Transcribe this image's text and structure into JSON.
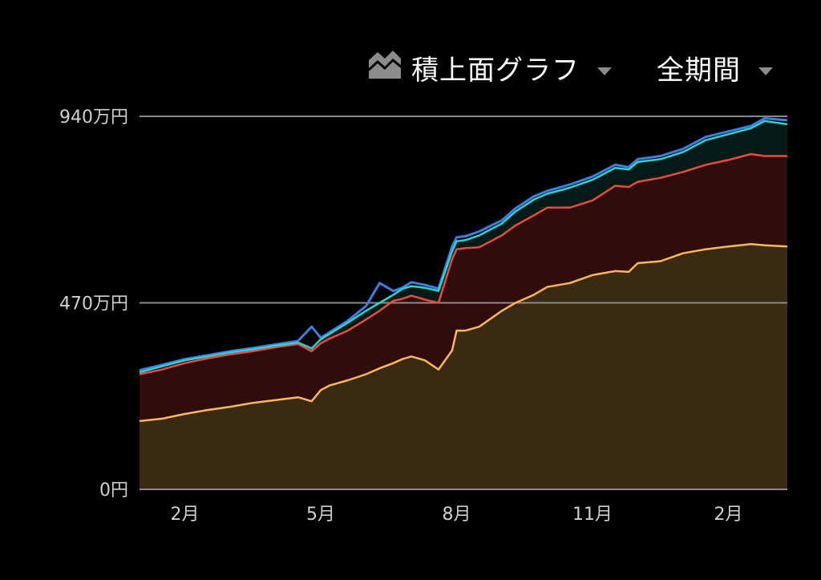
{
  "toolbar": {
    "chart_type_label": "積上面グラフ",
    "chart_type_icon": "stacked-area-icon",
    "period_label": "全期間",
    "caret_icon": "caret-down-icon"
  },
  "colors": {
    "background": "#000000",
    "grid": "#8a8a8a",
    "text": "#d0d0d0",
    "series_bottom_line": "#ffb55c",
    "series_bottom_fill": "#3a2a12",
    "series_middle_line": "#e84c3d",
    "series_middle_fill": "#2e0d0c",
    "series_top_line": "#2ad3d6",
    "series_top_fill": "#031a16",
    "series_total_line": "#3d7ee0"
  },
  "chart_data": {
    "type": "area",
    "stacked": true,
    "y_unit": "万円",
    "ylim": [
      0,
      940
    ],
    "y_ticks": [
      {
        "value": 0,
        "label": "0円"
      },
      {
        "value": 470,
        "label": "470万円"
      },
      {
        "value": 940,
        "label": "940万円"
      }
    ],
    "x_ticks": [
      "2月",
      "5月",
      "8月",
      "11月",
      "2月"
    ],
    "x_tick_positions_month": [
      1.0,
      4.0,
      7.0,
      10.0,
      13.0
    ],
    "x_range_month": [
      0.0,
      14.3
    ],
    "grid": "horizontal",
    "legend": "none",
    "x": [
      0.0,
      0.5,
      1.0,
      1.5,
      2.0,
      2.5,
      3.0,
      3.5,
      3.8,
      4.0,
      4.2,
      4.6,
      5.0,
      5.3,
      5.6,
      5.8,
      6.0,
      6.3,
      6.6,
      6.9,
      7.0,
      7.2,
      7.5,
      8.0,
      8.3,
      8.7,
      9.0,
      9.5,
      10.0,
      10.5,
      10.8,
      11.0,
      11.5,
      12.0,
      12.5,
      13.0,
      13.5,
      13.8,
      14.3
    ],
    "series": [
      {
        "stack_level": 1,
        "values": [
          172,
          178,
          190,
          200,
          208,
          218,
          225,
          232,
          222,
          250,
          262,
          275,
          290,
          305,
          318,
          328,
          335,
          325,
          302,
          350,
          400,
          400,
          410,
          450,
          470,
          490,
          510,
          520,
          540,
          550,
          548,
          570,
          575,
          595,
          605,
          612,
          618,
          615,
          612
        ]
      },
      {
        "stack_level": 2,
        "values": [
          290,
          302,
          318,
          330,
          340,
          348,
          358,
          366,
          348,
          368,
          380,
          400,
          428,
          450,
          475,
          480,
          488,
          478,
          470,
          580,
          605,
          608,
          610,
          640,
          665,
          690,
          710,
          710,
          728,
          765,
          762,
          775,
          785,
          800,
          818,
          830,
          845,
          840,
          840
        ]
      },
      {
        "stack_level": 3,
        "values": [
          295,
          310,
          325,
          335,
          345,
          353,
          362,
          370,
          355,
          378,
          392,
          420,
          450,
          470,
          490,
          505,
          512,
          508,
          500,
          600,
          625,
          628,
          640,
          670,
          700,
          730,
          745,
          760,
          780,
          810,
          806,
          825,
          832,
          850,
          880,
          895,
          910,
          928,
          920
        ]
      },
      {
        "stack_level": 4,
        "values": [
          300,
          314,
          328,
          338,
          348,
          356,
          365,
          374,
          410,
          382,
          396,
          425,
          462,
          520,
          500,
          508,
          522,
          515,
          506,
          612,
          635,
          638,
          650,
          678,
          708,
          738,
          752,
          768,
          788,
          818,
          812,
          832,
          840,
          858,
          888,
          902,
          916,
          935,
          930
        ]
      }
    ]
  }
}
